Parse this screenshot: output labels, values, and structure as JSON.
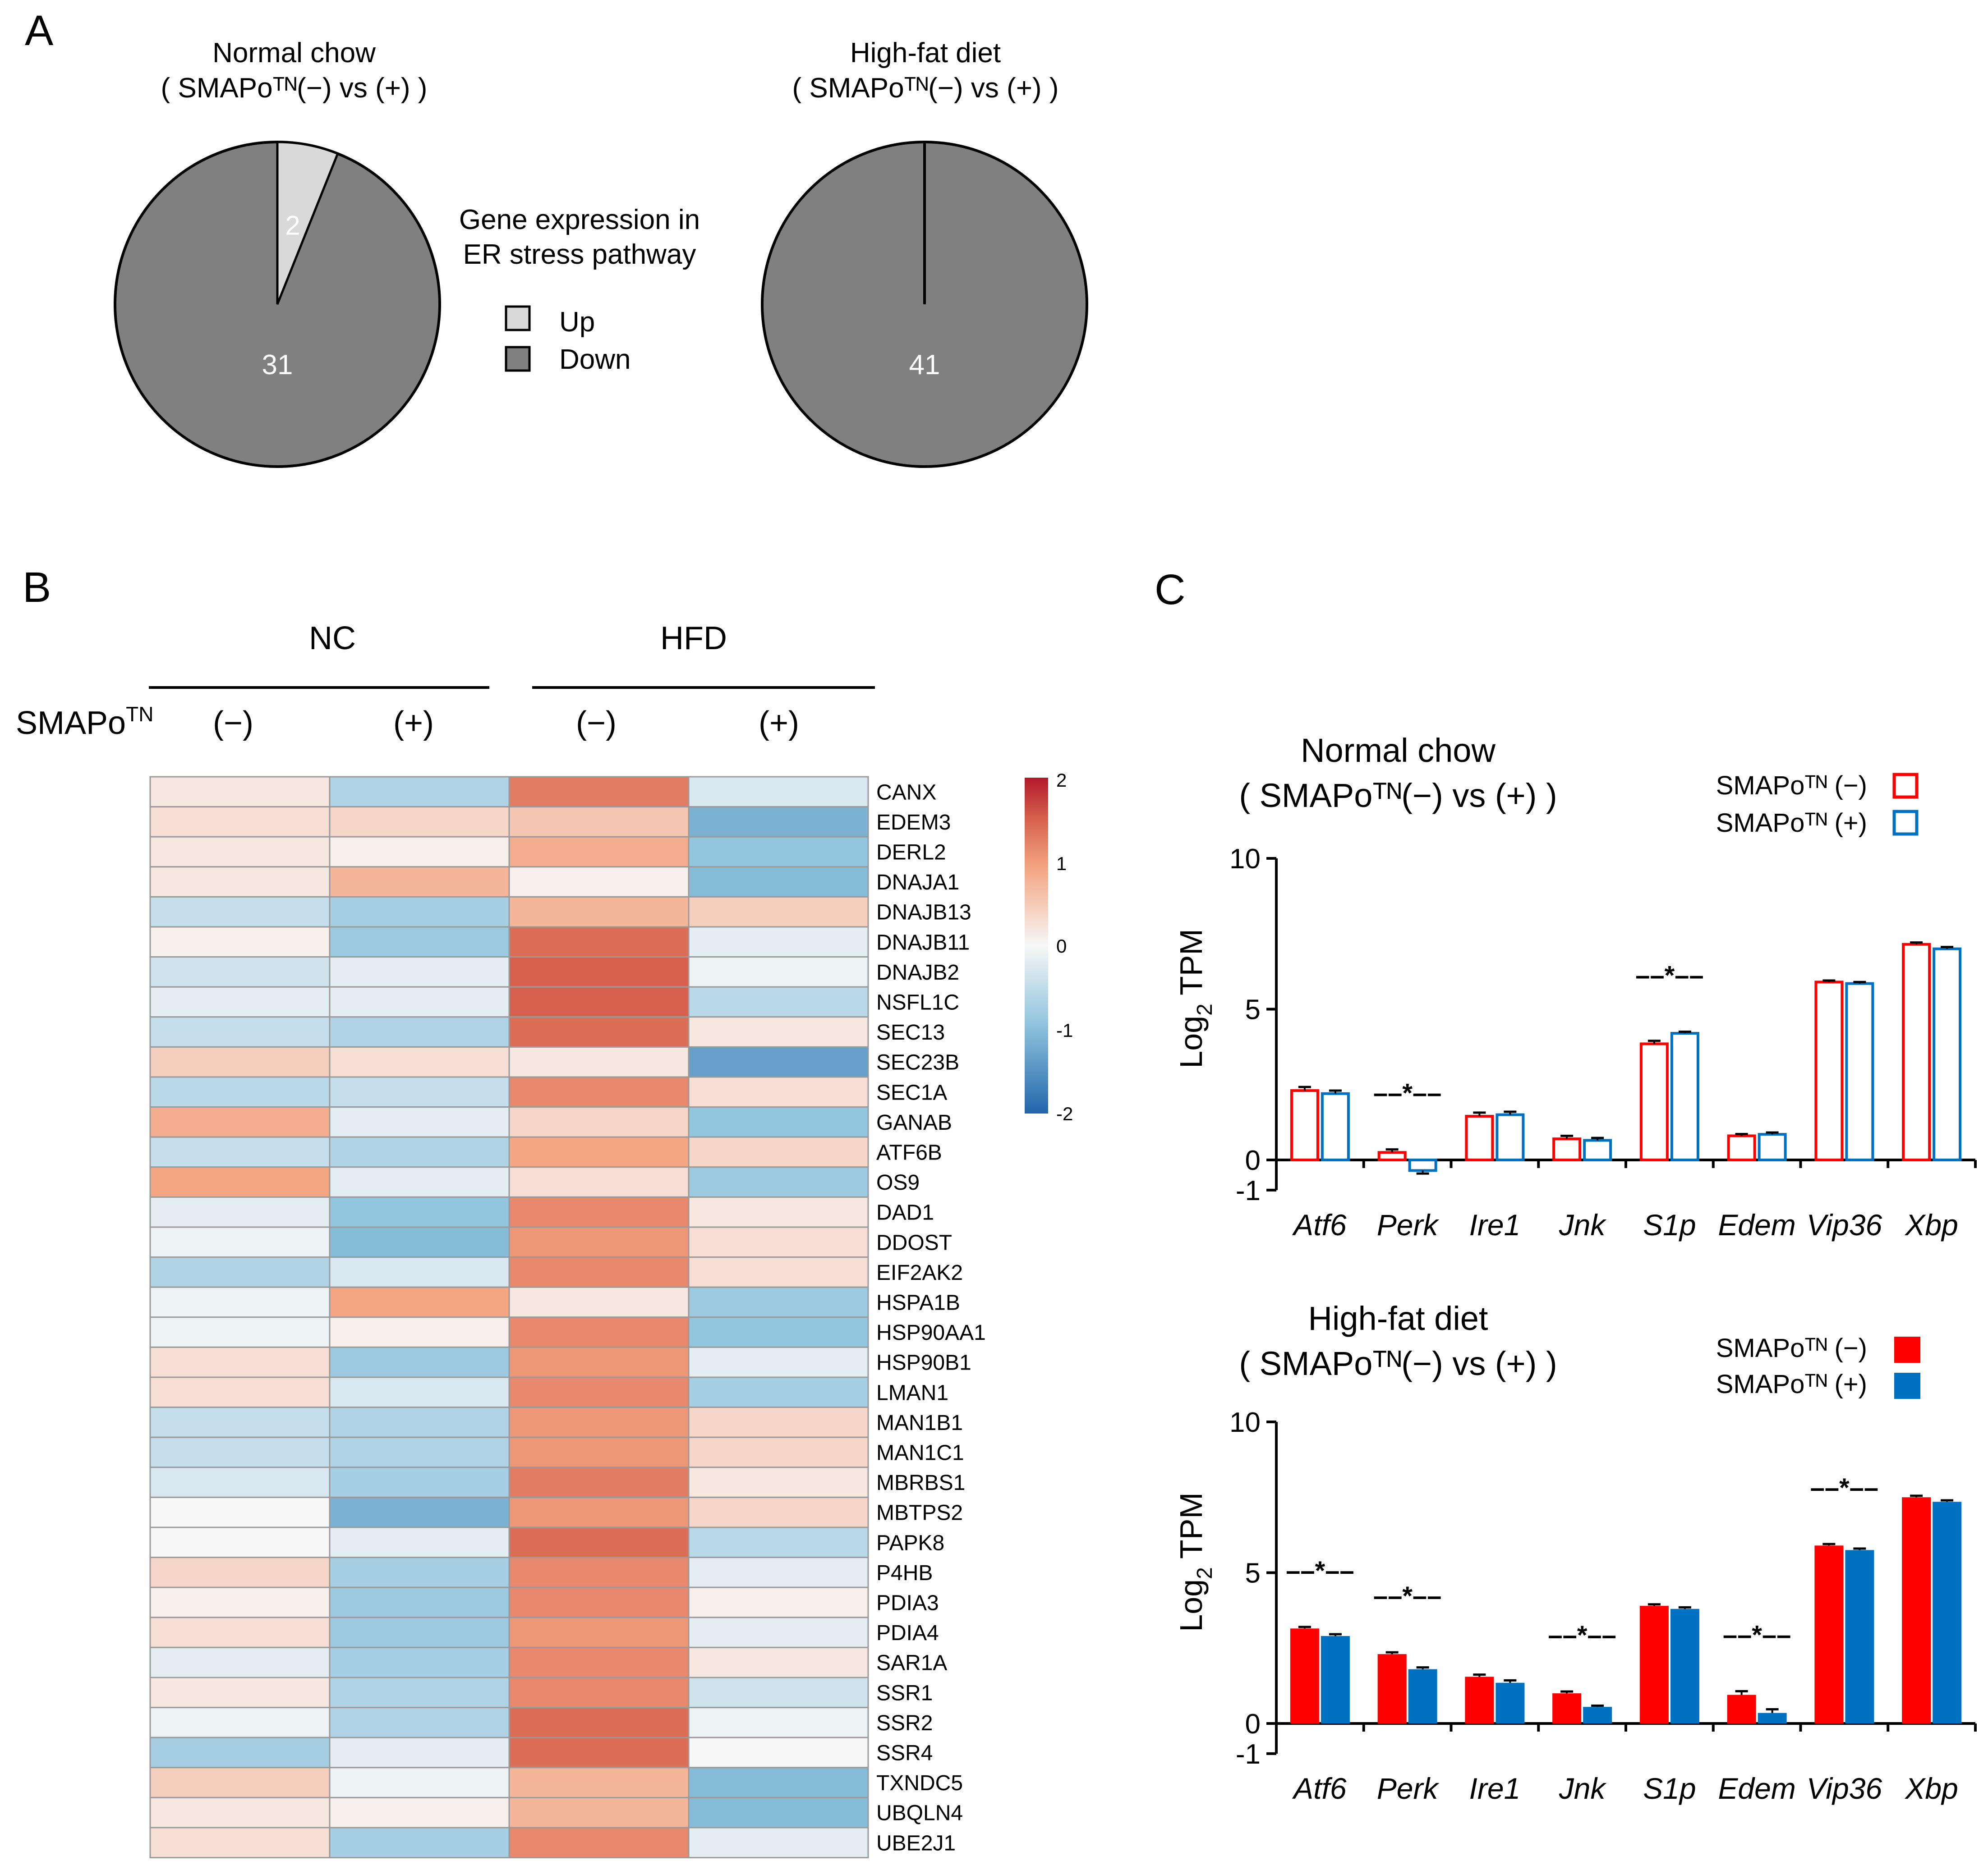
{
  "panel_labels": {
    "a": "A",
    "b": "B",
    "c": "C"
  },
  "colors": {
    "pie_up": "#d9d9d9",
    "pie_down": "#808080",
    "nc_neg": "#ff0000",
    "nc_pos": "#0070c0",
    "hfd_neg": "#ff0000",
    "hfd_pos": "#0070c0",
    "heat_low": "#2166ac",
    "heat_mid": "#f7f7f7",
    "heat_high": "#b2182b"
  },
  "pie_legend": {
    "title_line1": "Gene expression in",
    "title_line2": "ER stress pathway",
    "up_label": "Up",
    "down_label": "Down"
  },
  "heatmap_header": {
    "group1": "NC",
    "group2": "HFD",
    "row_label": "SMAPo",
    "row_label_sup": "TN",
    "cols": [
      "(−)",
      "(+)",
      "(−)",
      "(+)"
    ]
  },
  "bar_common": {
    "ylabel": "Log",
    "ylabel_sub": "2",
    "ylabel_tail": " TPM",
    "legend_neg": "SMAPoᵀᴺ (−)",
    "legend_pos": "SMAPoᵀᴺ (+)",
    "sig_mark": "––*––"
  },
  "chart_data": [
    {
      "type": "pie",
      "id": "pie-normal-chow",
      "title_line1": "Normal chow",
      "title_line2": "( SMAPoᵀᴺ(−) vs (+) )",
      "slices": [
        {
          "label": "Down",
          "value": 31,
          "display": "31"
        },
        {
          "label": "Up",
          "value": 2,
          "display": "2"
        }
      ]
    },
    {
      "type": "pie",
      "id": "pie-high-fat",
      "title_line1": "High-fat diet",
      "title_line2": "( SMAPoᵀᴺ(−) vs (+) )",
      "slices": [
        {
          "label": "Down",
          "value": 41,
          "display": "41"
        },
        {
          "label": "Up",
          "value": 0,
          "display": ""
        }
      ]
    },
    {
      "type": "heatmap",
      "id": "heatmap-er-stress",
      "columns": [
        "NC SMAPo(−)",
        "NC SMAPo(+)",
        "HFD SMAPo(−)",
        "HFD SMAPo(+)"
      ],
      "genes": [
        "CANX",
        "EDEM3",
        "DERL2",
        "DNAJA1",
        "DNAJB13",
        "DNAJB11",
        "DNAJB2",
        "NSFL1C",
        "SEC13",
        "SEC23B",
        "SEC1A",
        "GANAB",
        "ATF6B",
        "OS9",
        "DAD1",
        "DDOST",
        "EIF2AK2",
        "HSPA1B",
        "HSP90AA1",
        "HSP90B1",
        "LMAN1",
        "MAN1B1",
        "MAN1C1",
        "MBRBS1",
        "MBTPS2",
        "PAPK8",
        "P4HB",
        "PDIA3",
        "PDIA4",
        "SAR1A",
        "SSR1",
        "SSR2",
        "SSR4",
        "TXNDC5",
        "UBQLN4",
        "UBE2J1"
      ],
      "values": [
        [
          0.2,
          -0.7,
          1.3,
          -0.3
        ],
        [
          0.3,
          0.4,
          0.6,
          -1.2
        ],
        [
          0.2,
          0.1,
          0.9,
          -1.0
        ],
        [
          0.2,
          0.8,
          0.1,
          -1.1
        ],
        [
          -0.5,
          -0.8,
          0.8,
          0.5
        ],
        [
          0.1,
          -0.9,
          1.4,
          -0.2
        ],
        [
          -0.4,
          -0.2,
          1.5,
          -0.1
        ],
        [
          -0.2,
          -0.2,
          1.5,
          -0.6
        ],
        [
          -0.5,
          -0.7,
          1.4,
          0.2
        ],
        [
          0.5,
          0.3,
          0.2,
          -1.4
        ],
        [
          -0.6,
          -0.5,
          1.2,
          0.3
        ],
        [
          0.9,
          -0.2,
          0.4,
          -1.0
        ],
        [
          -0.5,
          -0.7,
          1.0,
          0.4
        ],
        [
          1.0,
          -0.2,
          0.3,
          -0.9
        ],
        [
          -0.2,
          -1.0,
          1.2,
          0.2
        ],
        [
          -0.1,
          -1.1,
          1.1,
          0.3
        ],
        [
          -0.7,
          -0.3,
          1.2,
          0.3
        ],
        [
          -0.1,
          1.0,
          0.2,
          -0.9
        ],
        [
          -0.1,
          0.1,
          1.2,
          -1.0
        ],
        [
          0.3,
          -0.9,
          1.1,
          -0.2
        ],
        [
          0.3,
          -0.3,
          1.2,
          -0.8
        ],
        [
          -0.5,
          -0.7,
          1.1,
          0.4
        ],
        [
          -0.5,
          -0.7,
          1.1,
          0.4
        ],
        [
          -0.3,
          -0.8,
          1.3,
          0.2
        ],
        [
          0.0,
          -1.2,
          1.1,
          0.4
        ],
        [
          0.0,
          -0.2,
          1.4,
          -0.6
        ],
        [
          0.4,
          -0.8,
          1.2,
          -0.2
        ],
        [
          0.1,
          -0.9,
          1.2,
          0.1
        ],
        [
          0.3,
          -0.9,
          1.1,
          -0.2
        ],
        [
          -0.2,
          -0.8,
          1.2,
          0.2
        ],
        [
          0.2,
          -0.7,
          1.2,
          -0.4
        ],
        [
          -0.1,
          -0.7,
          1.4,
          -0.1
        ],
        [
          -0.8,
          -0.2,
          1.4,
          0.0
        ],
        [
          0.5,
          -0.1,
          0.8,
          -1.1
        ],
        [
          0.2,
          0.1,
          0.8,
          -1.1
        ],
        [
          0.3,
          -0.8,
          1.2,
          -0.2
        ]
      ],
      "colorbar": {
        "min": -2,
        "max": 2,
        "ticks": [
          "2",
          "1",
          "0",
          "-1",
          "-2"
        ]
      }
    },
    {
      "type": "bar",
      "id": "bar-normal-chow",
      "title_line1": "Normal chow",
      "title_line2": "( SMAPoᵀᴺ(−) vs (+) )",
      "categories": [
        "Atf6",
        "Perk",
        "Ire1",
        "Jnk",
        "S1p",
        "Edem",
        "Vip36",
        "Xbp"
      ],
      "series": [
        {
          "name": "SMAPoᵀᴺ (−)",
          "style": "outline",
          "values": [
            2.3,
            0.25,
            1.45,
            0.7,
            3.85,
            0.8,
            5.9,
            7.15
          ],
          "errors": [
            0.12,
            0.1,
            0.12,
            0.1,
            0.1,
            0.06,
            0.05,
            0.06
          ]
        },
        {
          "name": "SMAPoᵀᴺ (+)",
          "style": "outline",
          "values": [
            2.2,
            -0.35,
            1.5,
            0.65,
            4.2,
            0.85,
            5.85,
            7.0
          ],
          "errors": [
            0.1,
            0.1,
            0.1,
            0.08,
            0.05,
            0.06,
            0.05,
            0.06
          ]
        }
      ],
      "significant": [
        false,
        true,
        false,
        false,
        true,
        false,
        false,
        false
      ],
      "ylim": [
        -1,
        10
      ],
      "yticks": [
        "10",
        "5",
        "0",
        "-1"
      ]
    },
    {
      "type": "bar",
      "id": "bar-high-fat",
      "title_line1": "High-fat diet",
      "title_line2": "( SMAPoᵀᴺ(−) vs (+) )",
      "categories": [
        "Atf6",
        "Perk",
        "Ire1",
        "Jnk",
        "S1p",
        "Edem",
        "Vip36",
        "Xbp"
      ],
      "series": [
        {
          "name": "SMAPoᵀᴺ (−)",
          "style": "filled",
          "values": [
            3.15,
            2.3,
            1.55,
            1.0,
            3.9,
            0.95,
            5.9,
            7.5
          ],
          "errors": [
            0.05,
            0.06,
            0.07,
            0.06,
            0.05,
            0.12,
            0.05,
            0.05
          ]
        },
        {
          "name": "SMAPoᵀᴺ (+)",
          "style": "filled",
          "values": [
            2.9,
            1.8,
            1.35,
            0.55,
            3.8,
            0.35,
            5.75,
            7.35
          ],
          "errors": [
            0.06,
            0.06,
            0.08,
            0.04,
            0.05,
            0.12,
            0.05,
            0.05
          ]
        }
      ],
      "significant": [
        true,
        true,
        false,
        true,
        false,
        true,
        true,
        false
      ],
      "ylim": [
        -1,
        10
      ],
      "yticks": [
        "10",
        "5",
        "0",
        "-1"
      ]
    }
  ]
}
